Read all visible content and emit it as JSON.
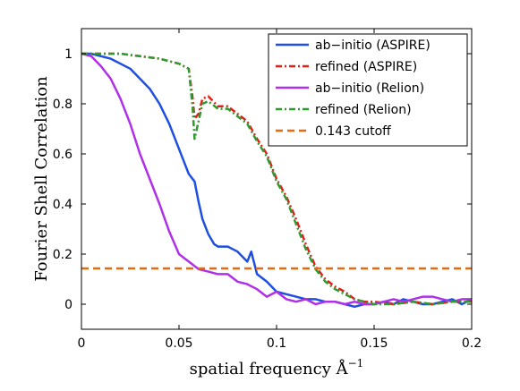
{
  "chart_data": {
    "type": "line",
    "xlabel": "spatial frequency Å",
    "xlabel_exponent": "−1",
    "ylabel": "Fourier Shell Correlation",
    "xlim": [
      0,
      0.2
    ],
    "ylim": [
      -0.1,
      1.1
    ],
    "xticks": [
      0,
      0.05,
      0.1,
      0.15,
      0.2
    ],
    "xtick_labels": [
      "0",
      "0.05",
      "0.1",
      "0.15",
      "0.2"
    ],
    "yticks": [
      0,
      0.2,
      0.4,
      0.6,
      0.8,
      1
    ],
    "ytick_labels": [
      "0",
      "0.2",
      "0.4",
      "0.6",
      "0.8",
      "1"
    ],
    "legend_position": "top-right",
    "grid": false,
    "series": [
      {
        "name": "ab−initio (ASPIRE)",
        "color": "#1f4fe0",
        "dash": "solid",
        "x": [
          0,
          0.005,
          0.01,
          0.015,
          0.02,
          0.025,
          0.03,
          0.035,
          0.04,
          0.045,
          0.05,
          0.055,
          0.058,
          0.06,
          0.062,
          0.065,
          0.068,
          0.07,
          0.075,
          0.08,
          0.085,
          0.087,
          0.09,
          0.095,
          0.1,
          0.105,
          0.11,
          0.115,
          0.12,
          0.125,
          0.13,
          0.135,
          0.14,
          0.145,
          0.15,
          0.155,
          0.16,
          0.165,
          0.17,
          0.175,
          0.18,
          0.185,
          0.19,
          0.195,
          0.2
        ],
        "y": [
          1.0,
          1.0,
          0.99,
          0.98,
          0.96,
          0.94,
          0.9,
          0.86,
          0.8,
          0.72,
          0.62,
          0.52,
          0.49,
          0.41,
          0.34,
          0.28,
          0.24,
          0.23,
          0.23,
          0.21,
          0.17,
          0.21,
          0.12,
          0.09,
          0.05,
          0.04,
          0.03,
          0.02,
          0.02,
          0.01,
          0.01,
          0.0,
          -0.01,
          0.0,
          0.0,
          0.01,
          0.0,
          0.02,
          0.01,
          0.0,
          0.0,
          0.01,
          0.02,
          0.0,
          0.02
        ]
      },
      {
        "name": "refined (ASPIRE)",
        "color": "#e0201a",
        "dash": "dashdot",
        "x": [
          0,
          0.01,
          0.02,
          0.03,
          0.04,
          0.05,
          0.055,
          0.057,
          0.058,
          0.06,
          0.062,
          0.065,
          0.07,
          0.075,
          0.08,
          0.085,
          0.09,
          0.095,
          0.1,
          0.105,
          0.11,
          0.115,
          0.12,
          0.125,
          0.13,
          0.135,
          0.14,
          0.145,
          0.15,
          0.16,
          0.17,
          0.18,
          0.19,
          0.2
        ],
        "y": [
          1.0,
          1.0,
          1.0,
          0.99,
          0.98,
          0.96,
          0.94,
          0.82,
          0.74,
          0.76,
          0.82,
          0.83,
          0.79,
          0.79,
          0.76,
          0.73,
          0.66,
          0.6,
          0.5,
          0.43,
          0.34,
          0.24,
          0.15,
          0.1,
          0.07,
          0.05,
          0.02,
          0.01,
          0.01,
          0.0,
          0.01,
          0.0,
          0.01,
          0.01
        ]
      },
      {
        "name": "ab−initio (Relion)",
        "color": "#b030e8",
        "dash": "solid",
        "x": [
          0,
          0.005,
          0.01,
          0.015,
          0.02,
          0.025,
          0.03,
          0.035,
          0.04,
          0.045,
          0.05,
          0.055,
          0.06,
          0.065,
          0.07,
          0.075,
          0.08,
          0.085,
          0.09,
          0.095,
          0.1,
          0.105,
          0.11,
          0.115,
          0.12,
          0.125,
          0.13,
          0.135,
          0.14,
          0.145,
          0.15,
          0.155,
          0.16,
          0.165,
          0.17,
          0.175,
          0.18,
          0.185,
          0.19,
          0.195,
          0.2
        ],
        "y": [
          1.0,
          0.99,
          0.95,
          0.9,
          0.82,
          0.72,
          0.6,
          0.5,
          0.4,
          0.29,
          0.2,
          0.17,
          0.14,
          0.13,
          0.12,
          0.12,
          0.09,
          0.08,
          0.06,
          0.03,
          0.05,
          0.02,
          0.01,
          0.02,
          0.0,
          0.01,
          0.01,
          0.0,
          0.01,
          0.0,
          0.0,
          0.01,
          0.02,
          0.01,
          0.02,
          0.03,
          0.03,
          0.02,
          0.01,
          0.02,
          0.02
        ]
      },
      {
        "name": "refined (Relion)",
        "color": "#2f9a2f",
        "dash": "dashdot",
        "x": [
          0,
          0.01,
          0.02,
          0.03,
          0.04,
          0.05,
          0.055,
          0.057,
          0.058,
          0.06,
          0.062,
          0.065,
          0.07,
          0.075,
          0.08,
          0.085,
          0.09,
          0.095,
          0.1,
          0.105,
          0.11,
          0.115,
          0.12,
          0.125,
          0.13,
          0.135,
          0.14,
          0.145,
          0.15,
          0.16,
          0.17,
          0.18,
          0.19,
          0.2
        ],
        "y": [
          1.0,
          1.0,
          1.0,
          0.99,
          0.98,
          0.96,
          0.94,
          0.78,
          0.66,
          0.73,
          0.8,
          0.81,
          0.78,
          0.78,
          0.75,
          0.72,
          0.65,
          0.59,
          0.49,
          0.42,
          0.32,
          0.22,
          0.14,
          0.09,
          0.06,
          0.04,
          0.02,
          0.01,
          0.0,
          0.0,
          0.01,
          0.0,
          0.01,
          0.01
        ]
      },
      {
        "name": "0.143 cutoff",
        "color": "#e86a10",
        "dash": "dashed",
        "x": [
          0,
          0.2
        ],
        "y": [
          0.143,
          0.143
        ]
      }
    ]
  }
}
